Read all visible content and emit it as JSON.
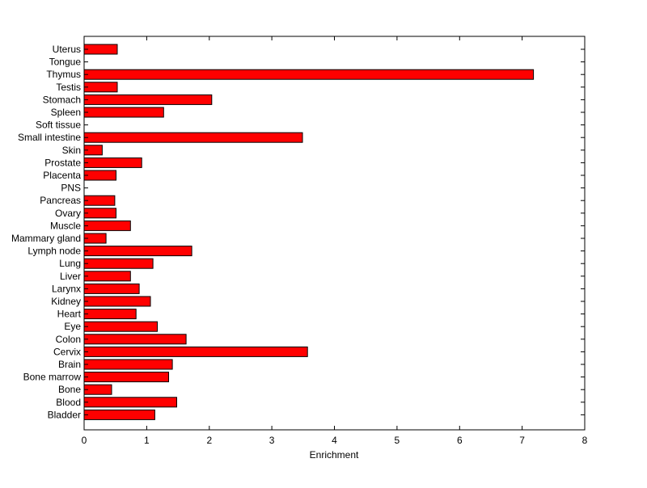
{
  "chart_data": {
    "type": "bar",
    "orientation": "horizontal",
    "categories": [
      "Uterus",
      "Tongue",
      "Thymus",
      "Testis",
      "Stomach",
      "Spleen",
      "Soft tissue",
      "Small intestine",
      "Skin",
      "Prostate",
      "Placenta",
      "PNS",
      "Pancreas",
      "Ovary",
      "Muscle",
      "Mammary gland",
      "Lymph node",
      "Lung",
      "Liver",
      "Larynx",
      "Kidney",
      "Heart",
      "Eye",
      "Colon",
      "Cervix",
      "Brain",
      "Bone marrow",
      "Bone",
      "Blood",
      "Bladder"
    ],
    "values": [
      0.53,
      0,
      7.18,
      0.53,
      2.04,
      1.27,
      0,
      3.49,
      0.29,
      0.92,
      0.51,
      0,
      0.49,
      0.51,
      0.74,
      0.35,
      1.72,
      1.1,
      0.74,
      0.88,
      1.06,
      0.83,
      1.17,
      1.63,
      3.57,
      1.41,
      1.35,
      0.44,
      1.48,
      1.13
    ],
    "title": "",
    "xlabel": "Enrichment",
    "ylabel": "",
    "xlim": [
      0,
      8
    ],
    "xticks": [
      "0",
      "1",
      "2",
      "3",
      "4",
      "5",
      "6",
      "7",
      "8"
    ],
    "bar_color": "#ff0000",
    "grid": false,
    "legend": "none"
  }
}
